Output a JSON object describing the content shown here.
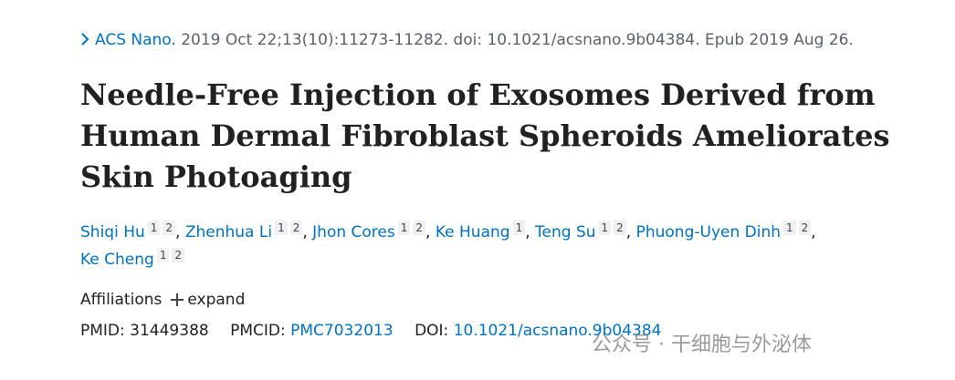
{
  "citation": {
    "journal": "ACS Nano.",
    "details": "2019 Oct 22;13(10):11273-11282. doi: 10.1021/acsnano.9b04384. Epub 2019 Aug 26."
  },
  "title": "Needle-Free Injection of Exosomes Derived from Human Dermal Fibroblast Spheroids Ameliorates Skin Photoaging",
  "authors": [
    {
      "name": "Shiqi Hu",
      "affiliations": [
        "1",
        "2"
      ]
    },
    {
      "name": "Zhenhua Li",
      "affiliations": [
        "1",
        "2"
      ]
    },
    {
      "name": "Jhon Cores",
      "affiliations": [
        "1",
        "2"
      ]
    },
    {
      "name": "Ke Huang",
      "affiliations": [
        "1"
      ]
    },
    {
      "name": "Teng Su",
      "affiliations": [
        "1",
        "2"
      ]
    },
    {
      "name": "Phuong-Uyen Dinh",
      "affiliations": [
        "1",
        "2"
      ]
    },
    {
      "name": "Ke Cheng",
      "affiliations": [
        "1",
        "2"
      ]
    }
  ],
  "author_separator": ",",
  "affiliations": {
    "label": "Affiliations",
    "action": "expand"
  },
  "identifiers": {
    "pmid": {
      "label": "PMID:",
      "value": "31449388"
    },
    "pmcid": {
      "label": "PMCID:",
      "value": "PMC7032013"
    },
    "doi": {
      "label": "DOI:",
      "value": "10.1021/acsnano.9b04384"
    }
  },
  "watermark": "公众号 · 干细胞与外泌体"
}
